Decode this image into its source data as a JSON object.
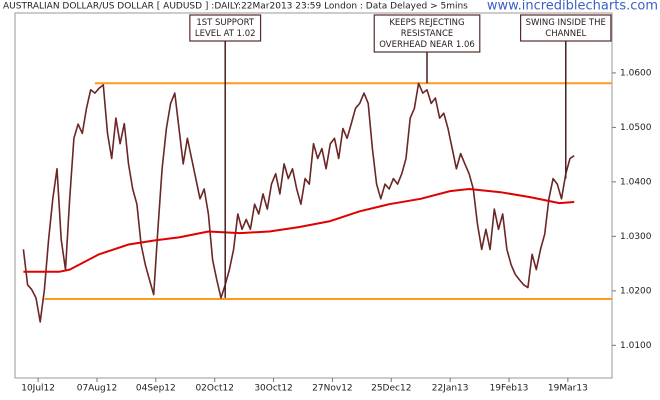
{
  "chart_data": {
    "type": "line",
    "title": "AUSTRALIAN DOLLAR/US DOLLAR [ AUDUSD ] :DAILY:22Mar2013 23:59 London : Data Delayed > 5mins",
    "watermark": "www.incrediblecharts.com",
    "x": [
      "2012-07-03",
      "2012-07-05",
      "2012-07-07",
      "2012-07-09",
      "2012-07-11",
      "2012-07-13",
      "2012-07-15",
      "2012-07-17",
      "2012-07-19",
      "2012-07-21",
      "2012-07-23",
      "2012-07-25",
      "2012-07-27",
      "2012-07-29",
      "2012-07-31",
      "2012-08-02",
      "2012-08-04",
      "2012-08-06",
      "2012-08-08",
      "2012-08-10",
      "2012-08-12",
      "2012-08-14",
      "2012-08-16",
      "2012-08-18",
      "2012-08-20",
      "2012-08-22",
      "2012-08-24",
      "2012-08-26",
      "2012-08-28",
      "2012-08-30",
      "2012-09-01",
      "2012-09-03",
      "2012-09-05",
      "2012-09-07",
      "2012-09-09",
      "2012-09-11",
      "2012-09-13",
      "2012-09-15",
      "2012-09-17",
      "2012-09-19",
      "2012-09-21",
      "2012-09-23",
      "2012-09-25",
      "2012-09-27",
      "2012-09-29",
      "2012-10-01",
      "2012-10-03",
      "2012-10-05",
      "2012-10-07",
      "2012-10-09",
      "2012-10-11",
      "2012-10-13",
      "2012-10-15",
      "2012-10-17",
      "2012-10-19",
      "2012-10-21",
      "2012-10-23",
      "2012-10-25",
      "2012-10-27",
      "2012-10-29",
      "2012-10-31",
      "2012-11-02",
      "2012-11-04",
      "2012-11-06",
      "2012-11-08",
      "2012-11-10",
      "2012-11-12",
      "2012-11-14",
      "2012-11-16",
      "2012-11-18",
      "2012-11-20",
      "2012-11-22",
      "2012-11-24",
      "2012-11-26",
      "2012-11-28",
      "2012-11-30",
      "2012-12-02",
      "2012-12-04",
      "2012-12-06",
      "2012-12-08",
      "2012-12-10",
      "2012-12-12",
      "2012-12-14",
      "2012-12-16",
      "2012-12-18",
      "2012-12-20",
      "2012-12-22",
      "2012-12-24",
      "2012-12-26",
      "2012-12-28",
      "2012-12-30",
      "2013-01-01",
      "2013-01-03",
      "2013-01-05",
      "2013-01-07",
      "2013-01-09",
      "2013-01-11",
      "2013-01-13",
      "2013-01-15",
      "2013-01-17",
      "2013-01-19",
      "2013-01-21",
      "2013-01-23",
      "2013-01-25",
      "2013-01-27",
      "2013-01-29",
      "2013-01-31",
      "2013-02-02",
      "2013-02-04",
      "2013-02-06",
      "2013-02-08",
      "2013-02-10",
      "2013-02-12",
      "2013-02-14",
      "2013-02-16",
      "2013-02-18",
      "2013-02-20",
      "2013-02-22",
      "2013-02-24",
      "2013-02-26",
      "2013-02-28",
      "2013-03-02",
      "2013-03-04",
      "2013-03-06",
      "2013-03-08",
      "2013-03-10",
      "2013-03-12",
      "2013-03-14",
      "2013-03-16",
      "2013-03-18",
      "2013-03-20",
      "2013-03-22"
    ],
    "series": [
      {
        "color": "#6b2626",
        "values": [
          1.0276,
          1.0211,
          1.0202,
          1.0187,
          1.0143,
          1.0202,
          1.0294,
          1.0369,
          1.0424,
          1.0294,
          1.0239,
          1.0369,
          1.048,
          1.0506,
          1.0489,
          1.0535,
          1.0569,
          1.0563,
          1.0572,
          1.0578,
          1.0489,
          1.0443,
          1.0517,
          1.047,
          1.0507,
          1.0433,
          1.0387,
          1.0359,
          1.0285,
          1.0248,
          1.022,
          1.0193,
          1.0313,
          1.0424,
          1.0498,
          1.0544,
          1.0563,
          1.0498,
          1.0433,
          1.048,
          1.0443,
          1.0406,
          1.0369,
          1.0387,
          1.0341,
          1.0257,
          1.022,
          1.0187,
          1.0211,
          1.0239,
          1.0276,
          1.0341,
          1.0313,
          1.0331,
          1.0313,
          1.0359,
          1.0341,
          1.0378,
          1.035,
          1.0396,
          1.0415,
          1.0378,
          1.0433,
          1.0406,
          1.0424,
          1.0387,
          1.0359,
          1.0406,
          1.0396,
          1.047,
          1.0443,
          1.0461,
          1.0424,
          1.047,
          1.048,
          1.0443,
          1.0498,
          1.048,
          1.0507,
          1.0535,
          1.0544,
          1.0563,
          1.0544,
          1.0461,
          1.0396,
          1.0369,
          1.0396,
          1.0387,
          1.0406,
          1.0396,
          1.0415,
          1.0443,
          1.0517,
          1.0535,
          1.0581,
          1.0563,
          1.0569,
          1.0544,
          1.0554,
          1.0517,
          1.0526,
          1.0498,
          1.0461,
          1.0424,
          1.0452,
          1.0433,
          1.0415,
          1.0387,
          1.0322,
          1.0276,
          1.0313,
          1.0276,
          1.035,
          1.0313,
          1.0341,
          1.0276,
          1.0248,
          1.023,
          1.022,
          1.0211,
          1.0206,
          1.0267,
          1.0239,
          1.0276,
          1.0304,
          1.0369,
          1.0406,
          1.0396,
          1.0369,
          1.0415,
          1.0443,
          1.0448
        ]
      },
      {
        "color": "#e00000",
        "x": [
          "2012-07-03",
          "2012-07-20",
          "2012-07-25",
          "2012-08-08",
          "2012-08-22",
          "2012-09-04",
          "2012-09-15",
          "2012-09-29",
          "2012-10-14",
          "2012-10-28",
          "2012-11-11",
          "2012-11-26",
          "2012-12-10",
          "2012-12-24",
          "2013-01-08",
          "2013-01-22",
          "2013-01-31",
          "2013-02-15",
          "2013-03-01",
          "2013-03-15",
          "2013-03-22"
        ],
        "values": [
          1.0235,
          1.0235,
          1.0239,
          1.0267,
          1.0285,
          1.0293,
          1.0298,
          1.0309,
          1.0306,
          1.0309,
          1.0317,
          1.0328,
          1.0346,
          1.0359,
          1.0369,
          1.0383,
          1.0387,
          1.0381,
          1.0372,
          1.0361,
          1.0363
        ]
      }
    ],
    "lines": [
      {
        "value": 1.0581,
        "start": "2012-08-06",
        "color": "#ff9a1f"
      },
      {
        "value": 1.0185,
        "start": "2012-07-13",
        "color": "#ff9a1f"
      }
    ],
    "annotations": [
      {
        "lines": [
          "1ST SUPPORT",
          "LEVEL AT 1.02"
        ],
        "x": "2012-10-07",
        "y": 1.0187
      },
      {
        "lines": [
          "KEEPS REJECTING",
          "RESISTANCE",
          "OVERHEAD NEAR 1.06"
        ],
        "x": "2013-01-11",
        "y": 1.0581
      },
      {
        "lines": [
          "SWING INSIDE THE",
          "CHANNEL"
        ],
        "x": "2013-03-18",
        "y": 1.0406
      }
    ],
    "xlim": [
      "2012-06-29",
      "2013-04-09"
    ],
    "xticks": [
      {
        "value": "2012-07-10",
        "label": "10Jul12"
      },
      {
        "value": "2012-08-07",
        "label": "07Aug12"
      },
      {
        "value": "2012-09-04",
        "label": "04Sep12"
      },
      {
        "value": "2012-10-02",
        "label": "02Oct12"
      },
      {
        "value": "2012-10-30",
        "label": "30Oct12"
      },
      {
        "value": "2012-11-27",
        "label": "27Nov12"
      },
      {
        "value": "2012-12-25",
        "label": "25Dec12"
      },
      {
        "value": "2013-01-22",
        "label": "22Jan13"
      },
      {
        "value": "2013-02-19",
        "label": "19Feb13"
      },
      {
        "value": "2013-03-19",
        "label": "19Mar13"
      }
    ],
    "ylim": [
      1.004,
      1.071
    ],
    "yticks": [
      {
        "value": 1.01,
        "label": "1.0100"
      },
      {
        "value": 1.02,
        "label": "1.0200"
      },
      {
        "value": 1.03,
        "label": "1.0300"
      },
      {
        "value": 1.04,
        "label": "1.0400"
      },
      {
        "value": 1.05,
        "label": "1.0500"
      },
      {
        "value": 1.06,
        "label": "1.0600"
      }
    ]
  }
}
